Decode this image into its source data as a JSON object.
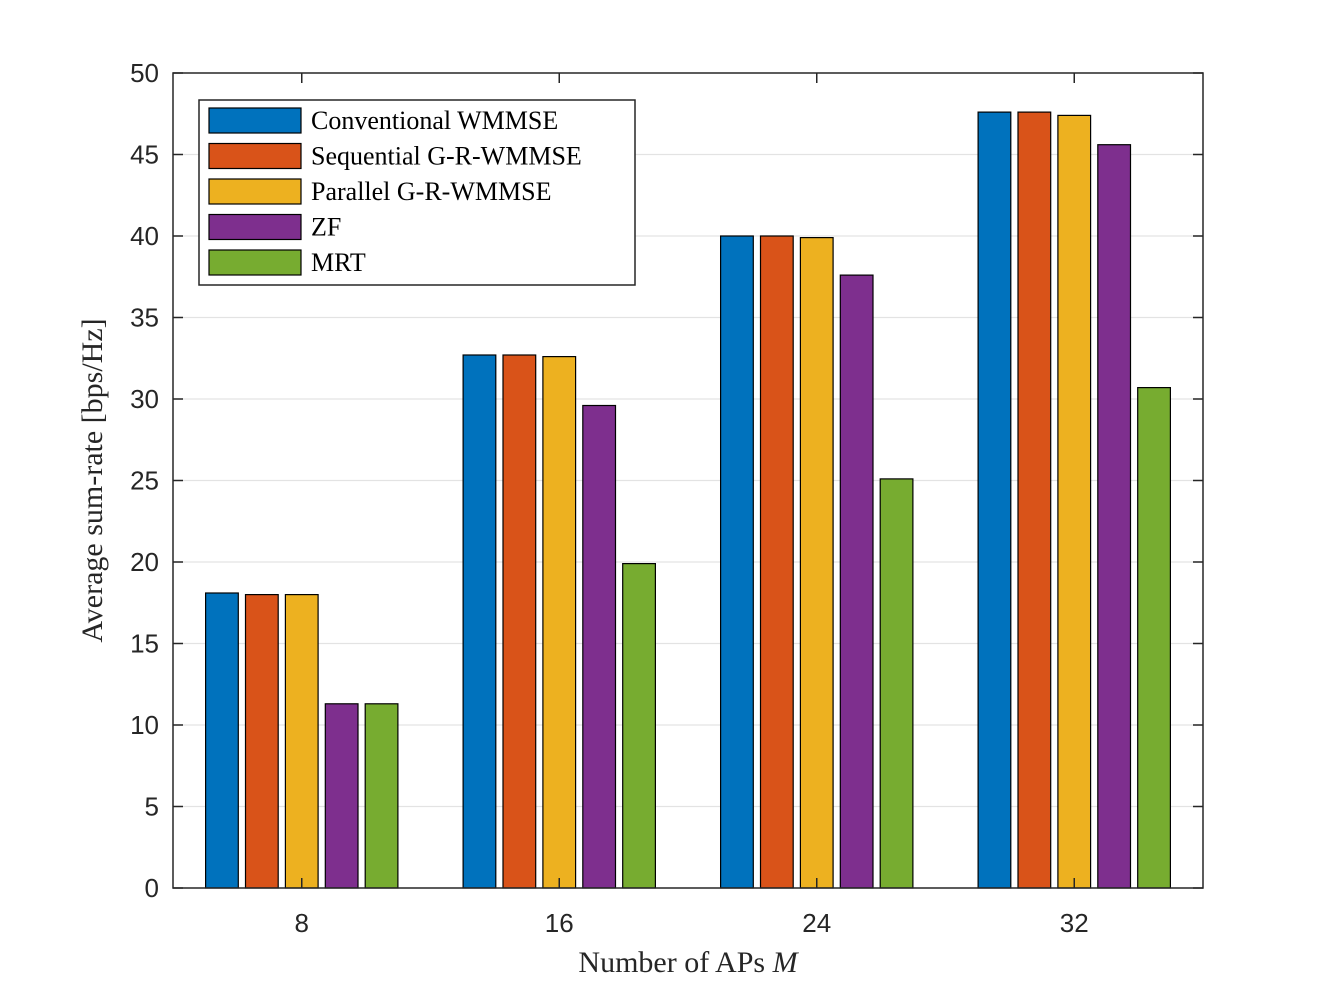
{
  "chart_data": {
    "type": "bar",
    "title": "",
    "xlabel": "Number of APs",
    "xlabel_var": "M",
    "ylabel": "Average sum-rate [bps/Hz]",
    "ylim": [
      0,
      50
    ],
    "yticks": [
      "0",
      "5",
      "10",
      "15",
      "20",
      "25",
      "30",
      "35",
      "40",
      "45",
      "50"
    ],
    "grid": "horizontal",
    "legend_position": "top-left",
    "categories": [
      "8",
      "16",
      "24",
      "32"
    ],
    "series": [
      {
        "name": "Conventional WMMSE",
        "color": "#0072BD",
        "values": [
          18.1,
          32.7,
          40.0,
          47.6
        ]
      },
      {
        "name": "Sequential G-R-WMMSE",
        "color": "#D95319",
        "values": [
          18.0,
          32.7,
          40.0,
          47.6
        ]
      },
      {
        "name": "Parallel G-R-WMMSE",
        "color": "#EDB120",
        "values": [
          18.0,
          32.6,
          39.9,
          47.4
        ]
      },
      {
        "name": "ZF",
        "color": "#7E2F8E",
        "values": [
          11.3,
          29.6,
          37.6,
          45.6
        ]
      },
      {
        "name": "MRT",
        "color": "#77AC30",
        "values": [
          11.3,
          19.9,
          25.1,
          30.7
        ]
      }
    ]
  }
}
